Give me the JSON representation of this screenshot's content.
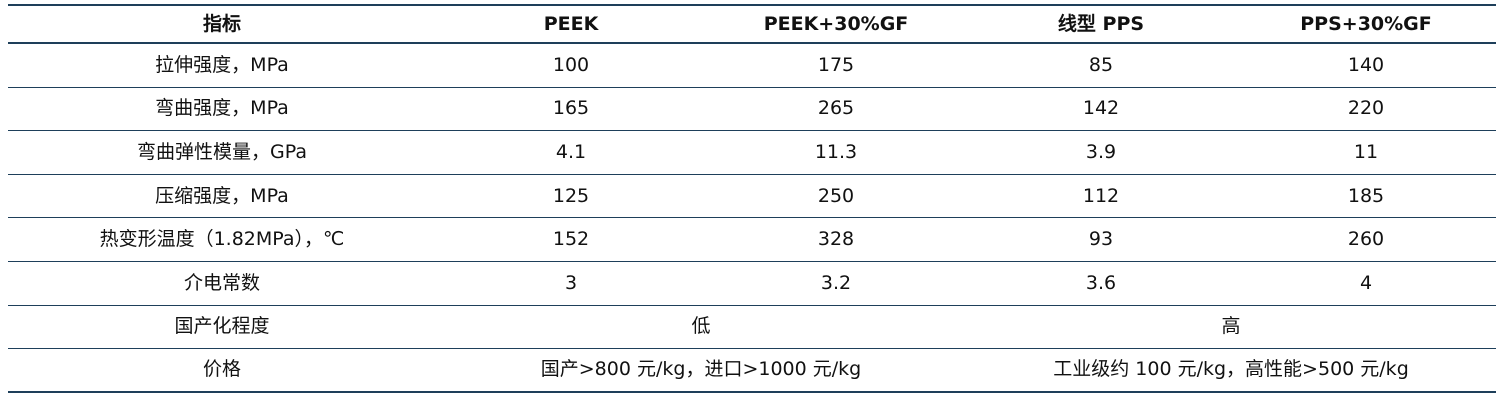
{
  "columns": [
    "指标",
    "PEEK",
    "PEEK+30%GF",
    "线型 PPS",
    "PPS+30%GF"
  ],
  "rows": [
    {
      "metric": "拉伸强度，MPa",
      "values": [
        "100",
        "175",
        "85",
        "140"
      ]
    },
    {
      "metric": "弯曲强度，MPa",
      "values": [
        "165",
        "265",
        "142",
        "220"
      ]
    },
    {
      "metric": "弯曲弹性模量，GPa",
      "values": [
        "4.1",
        "11.3",
        "3.9",
        "11"
      ]
    },
    {
      "metric": "压缩强度，MPa",
      "values": [
        "125",
        "250",
        "112",
        "185"
      ]
    },
    {
      "metric": "热变形温度（1.82MPa），℃",
      "values": [
        "152",
        "328",
        "93",
        "260"
      ]
    },
    {
      "metric": "介电常数",
      "values": [
        "3",
        "3.2",
        "3.6",
        "4"
      ]
    }
  ],
  "merged_rows": [
    {
      "metric": "国产化程度",
      "peek": "低",
      "pps": "高"
    },
    {
      "metric": "价格",
      "peek": "国产>800 元/kg，进口>1000 元/kg",
      "pps": "工业级约 100 元/kg，高性能>500 元/kg"
    }
  ]
}
